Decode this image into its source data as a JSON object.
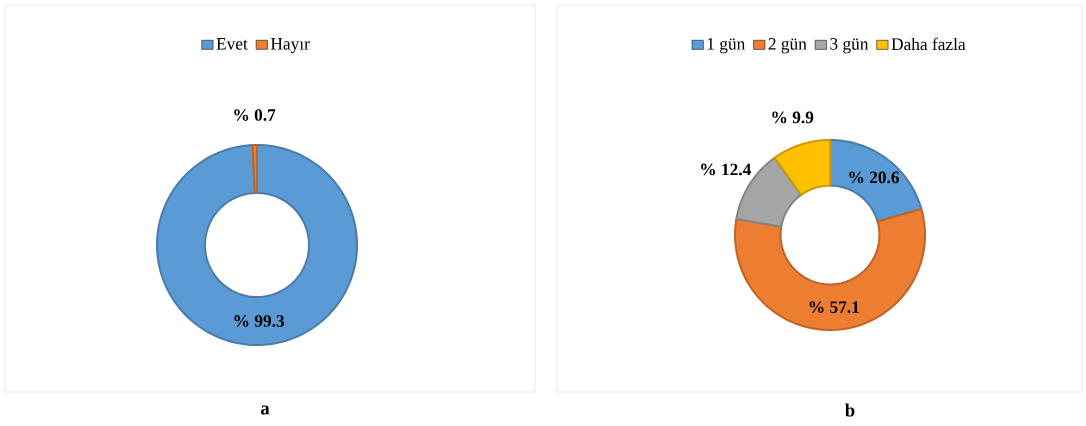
{
  "chart_data": [
    {
      "type": "donut",
      "categories": [
        "Evet",
        "Hayır"
      ],
      "values": [
        99.3,
        0.7
      ],
      "colors": [
        "#5b9bd5",
        "#ed7d31"
      ],
      "value_labels": [
        "% 99.3",
        "% 0.7"
      ],
      "legend": "top",
      "annotations": [
        "a"
      ]
    },
    {
      "type": "donut",
      "categories": [
        "1 gün",
        "2 gün",
        "3 gün",
        "Daha fazla"
      ],
      "values": [
        20.6,
        57.1,
        12.4,
        9.9
      ],
      "colors": [
        "#5b9bd5",
        "#ed7d31",
        "#a5a5a5",
        "#ffc000"
      ],
      "value_labels": [
        "% 20.6",
        "% 57.1",
        "% 12.4",
        "% 9.9"
      ],
      "legend": "top",
      "annotations": [
        "b"
      ]
    }
  ]
}
